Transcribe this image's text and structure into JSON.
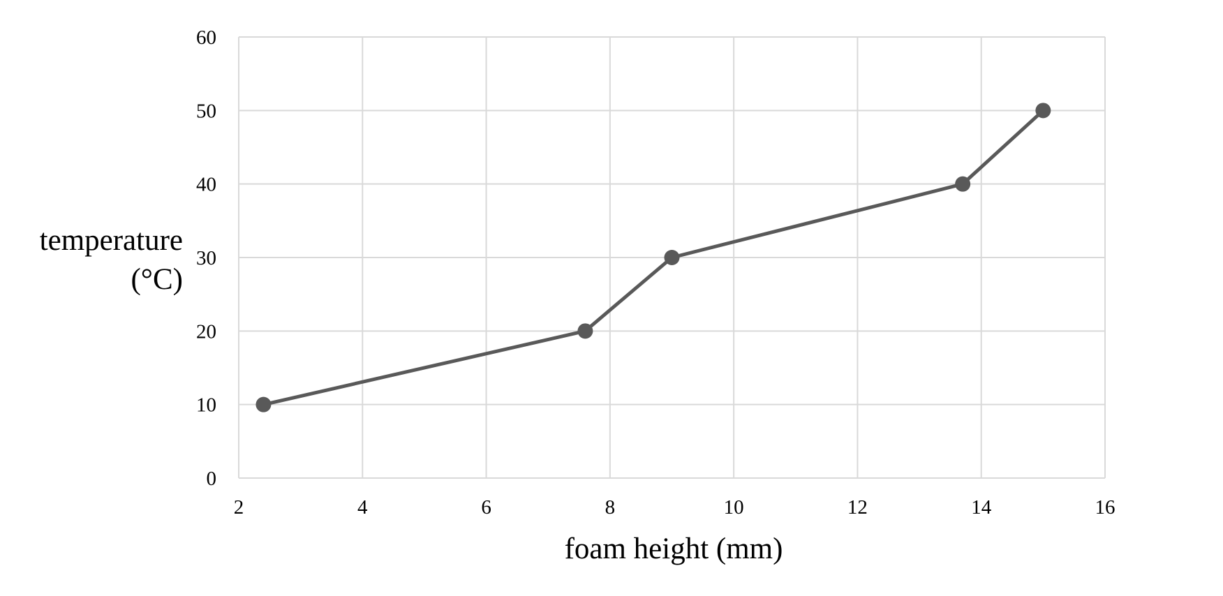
{
  "chart_data": {
    "type": "line",
    "title": "",
    "xlabel": "foam height (mm)",
    "ylabel_lines": [
      "temperature",
      "(°C)"
    ],
    "xlim": [
      2,
      16
    ],
    "ylim": [
      0,
      60
    ],
    "xticks": [
      2,
      4,
      6,
      8,
      10,
      12,
      14,
      16
    ],
    "yticks": [
      0,
      10,
      20,
      30,
      40,
      50,
      60
    ],
    "grid": true,
    "legend": "none",
    "series": [
      {
        "color": "#595959",
        "x": [
          2.4,
          7.6,
          9.0,
          13.7,
          15.0
        ],
        "y": [
          10,
          20,
          30,
          40,
          50
        ]
      }
    ]
  }
}
